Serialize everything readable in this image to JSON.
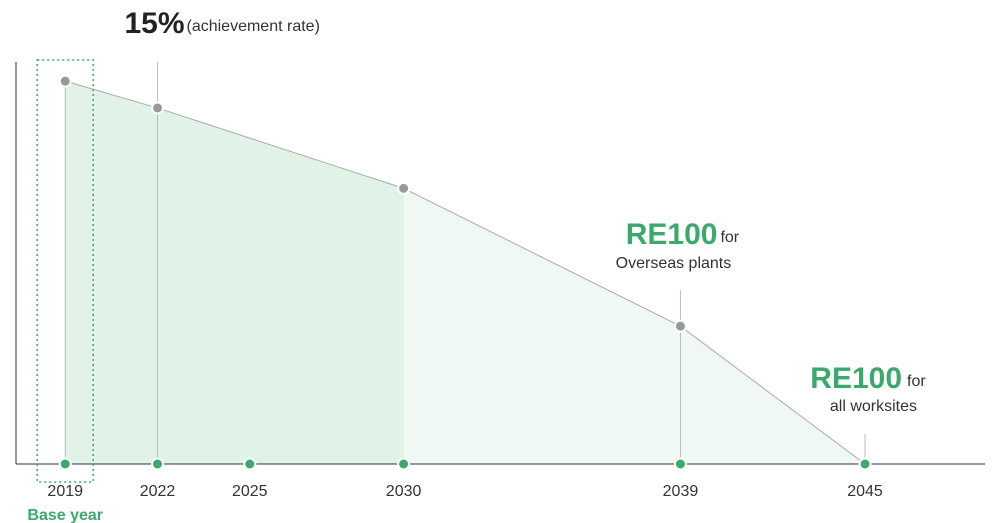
{
  "chart_data": {
    "type": "area",
    "x": [
      2019,
      2022,
      2030,
      2039,
      2045
    ],
    "values": [
      100,
      93,
      72,
      36,
      0
    ],
    "xlim": [
      2017.4,
      2048.9
    ],
    "ylim": [
      0,
      105
    ],
    "xticks": [
      2019,
      2022,
      2025,
      2030,
      2039,
      2045
    ],
    "highlight_until": 2030,
    "base_label": "Base year",
    "color": "#3aa96b",
    "annotations": [
      {
        "x": 2022,
        "emphasis": "15%",
        "text": "(achievement rate)"
      },
      {
        "x": 2039,
        "emphasis": "RE100",
        "text": "for",
        "line2": "Overseas plants"
      },
      {
        "x": 2045,
        "emphasis": "RE100",
        "text": "for",
        "line2": "all worksites"
      }
    ]
  }
}
